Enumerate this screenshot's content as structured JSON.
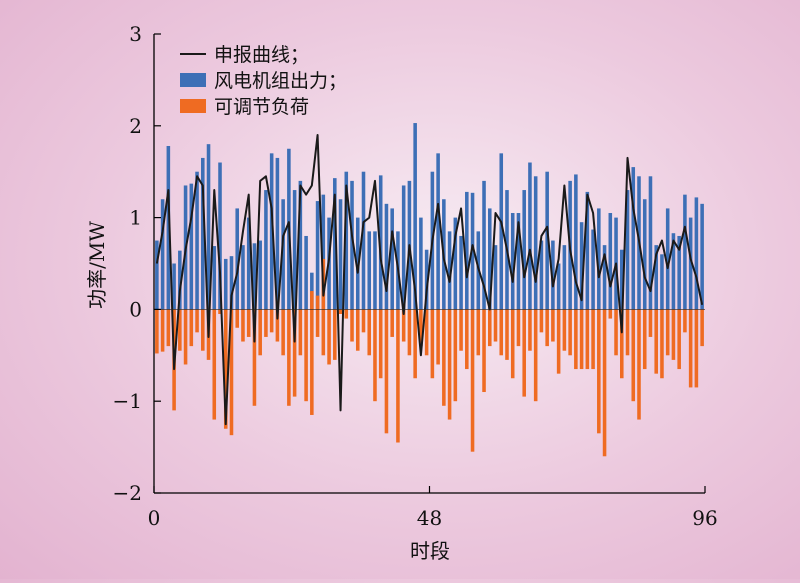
{
  "chart_data": {
    "type": "bar",
    "xlabel": "时段",
    "ylabel": "功率/MW",
    "xlim": [
      0,
      96
    ],
    "ylim": [
      -2,
      3
    ],
    "xticks": [
      "0",
      "48",
      "96"
    ],
    "yticks": [
      "−2",
      "−1",
      "0",
      "1",
      "2",
      "3"
    ],
    "legend_position": "top-left",
    "series": [
      {
        "name": "申报曲线；",
        "kind": "line",
        "color": "#1a1a1a",
        "values": [
          0.5,
          0.85,
          1.3,
          -0.65,
          0.2,
          0.65,
          1.0,
          1.45,
          1.35,
          -0.3,
          1.3,
          0.4,
          -1.25,
          0.15,
          0.4,
          0.85,
          1.25,
          -0.35,
          1.4,
          1.45,
          1.1,
          -0.1,
          0.8,
          0.95,
          -0.35,
          1.35,
          1.25,
          1.35,
          1.9,
          0.15,
          0.55,
          1.25,
          -1.1,
          1.35,
          0.8,
          0.4,
          0.95,
          1.0,
          1.4,
          0.55,
          0.2,
          0.85,
          0.45,
          -0.05,
          0.7,
          0.2,
          -0.5,
          0.2,
          0.75,
          1.15,
          0.55,
          0.3,
          0.8,
          1.1,
          0.35,
          0.7,
          0.45,
          0.25,
          0.0,
          1.05,
          0.95,
          0.65,
          0.3,
          0.95,
          0.35,
          0.65,
          0.3,
          0.8,
          0.9,
          0.25,
          0.55,
          1.35,
          0.65,
          0.3,
          0.1,
          1.25,
          1.05,
          0.35,
          0.6,
          0.25,
          0.5,
          -0.25,
          1.65,
          1.1,
          0.75,
          0.35,
          0.2,
          0.6,
          0.75,
          0.45,
          0.75,
          0.65,
          0.9,
          0.55,
          0.35,
          0.05
        ]
      },
      {
        "name": "风电机组出力；",
        "kind": "bar",
        "color": "#3d6fb6",
        "values": [
          0.75,
          1.2,
          1.78,
          0.5,
          0.64,
          1.35,
          1.37,
          1.5,
          1.65,
          1.8,
          0.69,
          1.6,
          0.55,
          0.58,
          1.1,
          0.7,
          1.0,
          0.72,
          0.75,
          1.3,
          1.7,
          1.65,
          1.2,
          1.75,
          1.3,
          1.4,
          0.8,
          0.4,
          1.18,
          1.25,
          1.0,
          1.43,
          1.2,
          1.5,
          1.4,
          1.0,
          1.5,
          0.85,
          0.85,
          1.46,
          1.15,
          1.1,
          0.85,
          1.35,
          1.4,
          2.03,
          1.0,
          0.65,
          1.5,
          1.7,
          1.2,
          0.85,
          1.0,
          0.8,
          1.28,
          1.27,
          0.85,
          1.4,
          1.1,
          0.7,
          1.7,
          1.3,
          1.05,
          1.05,
          1.3,
          1.6,
          1.45,
          0.75,
          1.5,
          0.75,
          0.5,
          0.7,
          1.4,
          1.47,
          0.95,
          1.28,
          0.87,
          1.1,
          0.7,
          1.05,
          1.0,
          0.65,
          1.3,
          1.55,
          1.45,
          1.2,
          1.45,
          0.7,
          0.6,
          1.1,
          0.83,
          0.8,
          1.25,
          1.0,
          1.22,
          1.15
        ]
      },
      {
        "name": "可调节负荷",
        "kind": "bar",
        "color": "#ef6b22",
        "values": [
          -0.48,
          -0.46,
          -0.4,
          -1.1,
          -0.45,
          -0.6,
          -0.4,
          -0.25,
          -0.45,
          -0.55,
          -1.2,
          -0.05,
          -1.3,
          -1.37,
          -0.2,
          -0.35,
          -0.3,
          -1.05,
          -0.5,
          -0.3,
          -0.25,
          -0.35,
          -0.5,
          -1.05,
          -0.95,
          -0.5,
          -1.0,
          -1.15,
          -0.3,
          -0.5,
          -0.6,
          -0.55,
          -0.05,
          -0.1,
          -0.35,
          -0.45,
          -0.25,
          -0.5,
          -1.0,
          -0.75,
          -1.35,
          -0.3,
          -1.45,
          -0.35,
          -0.5,
          -0.75,
          -0.4,
          -0.5,
          -0.75,
          -0.6,
          -1.05,
          -1.2,
          -1.0,
          -0.45,
          -0.65,
          -1.55,
          -0.5,
          -0.9,
          -0.4,
          -0.35,
          -0.5,
          -0.55,
          -0.75,
          -0.4,
          -0.95,
          -0.45,
          -1.0,
          -0.25,
          -0.4,
          -0.35,
          -0.7,
          -0.45,
          -0.5,
          -0.65,
          -0.65,
          -0.65,
          -0.65,
          -1.35,
          -1.6,
          -0.1,
          -0.5,
          -0.75,
          -0.5,
          -1.0,
          -1.2,
          -0.65,
          -0.3,
          -0.7,
          -0.75,
          -0.5,
          -0.55,
          -0.65,
          -0.25,
          -0.85,
          -0.85,
          -0.4
        ],
        "positive_points": {
          "index": [
            27,
            28,
            29
          ],
          "values": [
            0.2,
            0.15,
            0.55
          ]
        }
      }
    ]
  }
}
